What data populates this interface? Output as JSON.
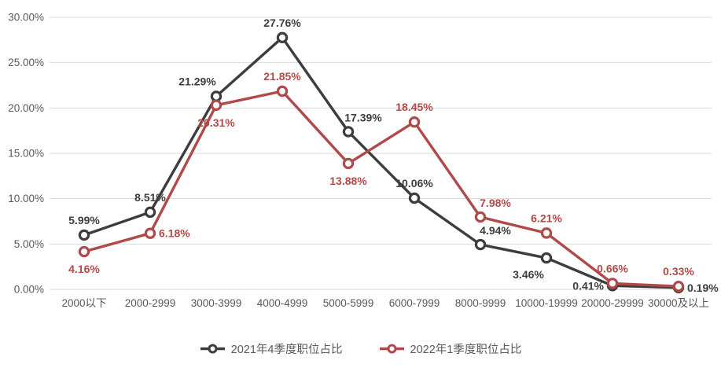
{
  "chart_data": {
    "type": "line",
    "categories": [
      "2000以下",
      "2000-2999",
      "3000-3999",
      "4000-4999",
      "5000-5999",
      "6000-7999",
      "8000-9999",
      "10000-19999",
      "20000-29999",
      "30000及以上"
    ],
    "series": [
      {
        "name": "2021年4季度职位占比",
        "color": "#3d3d3d",
        "values": [
          5.99,
          8.51,
          21.29,
          27.76,
          17.39,
          10.06,
          4.94,
          3.46,
          0.41,
          0.19
        ],
        "data_labels": [
          "5.99%",
          "8.51%",
          "21.29%",
          "27.76%",
          "17.39%",
          "10.06%",
          "4.94%",
          "3.46%",
          "0.41%",
          "0.19%"
        ],
        "label_positions": [
          "above",
          "above",
          "above-left",
          "above",
          "above-right",
          "above",
          "above-right",
          "below-left",
          "left",
          "right"
        ]
      },
      {
        "name": "2022年1季度职位占比",
        "color": "#b04a49",
        "values": [
          4.16,
          6.18,
          20.31,
          21.85,
          13.88,
          18.45,
          7.98,
          6.21,
          0.66,
          0.33
        ],
        "data_labels": [
          "4.16%",
          "6.18%",
          "20.31%",
          "21.85%",
          "13.88%",
          "18.45%",
          "7.98%",
          "6.21%",
          "0.66%",
          "0.33%"
        ],
        "label_positions": [
          "below",
          "right",
          "below",
          "above",
          "below",
          "above",
          "above-right",
          "above",
          "above",
          "above"
        ]
      }
    ],
    "yticks": [
      "0.00%",
      "5.00%",
      "10.00%",
      "15.00%",
      "20.00%",
      "25.00%",
      "30.00%"
    ],
    "ylim": [
      0,
      30
    ],
    "ytick_step": 5,
    "grid": true,
    "legend_position": "bottom",
    "marker": "circle"
  },
  "style": {
    "grid_color": "#d9d9d9",
    "axis_text_color": "#595959",
    "background": "#ffffff"
  }
}
